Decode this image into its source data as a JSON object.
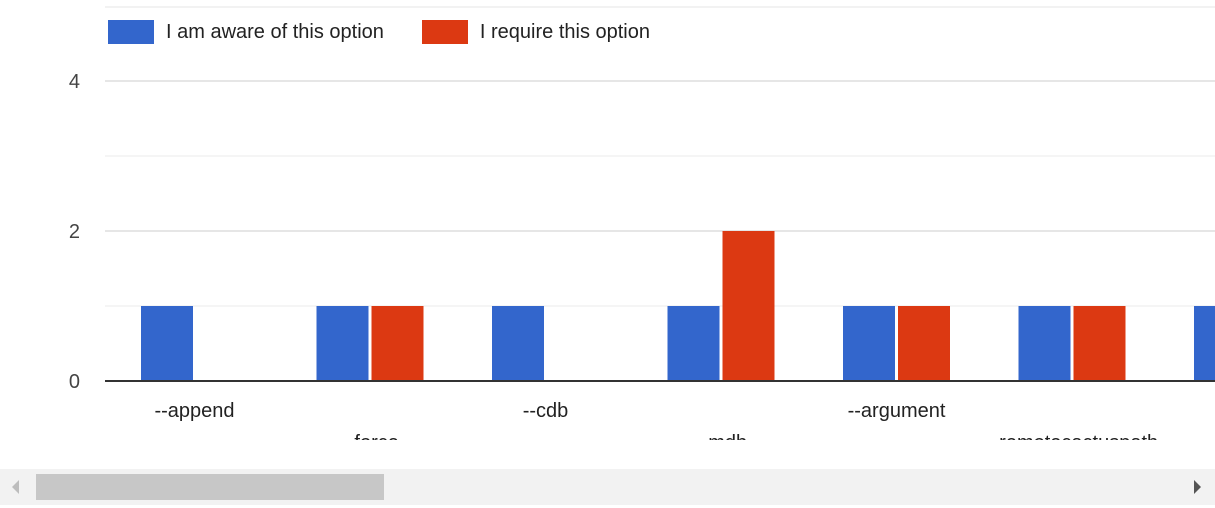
{
  "legend": [
    {
      "label": "I am aware of this option",
      "color": "#3366cc"
    },
    {
      "label": "I require this option",
      "color": "#dc3912"
    }
  ],
  "chart_data": {
    "type": "bar",
    "categories": [
      "--append",
      "--force",
      "--cdb",
      "--mdb",
      "--argument",
      "--remotecactuspath",
      "--"
    ],
    "series": [
      {
        "name": "I am aware of this option",
        "values": [
          1,
          1,
          1,
          1,
          1,
          1,
          1
        ]
      },
      {
        "name": "I require this option",
        "values": [
          0,
          1,
          0,
          2,
          1,
          1,
          null
        ]
      }
    ],
    "yticks": [
      0,
      2,
      4
    ],
    "ylim": [
      0,
      4
    ],
    "grid": true,
    "legend_position": "top-left"
  },
  "scrollbar": {
    "left_icon": "chevron-left-icon",
    "right_icon": "chevron-right-icon"
  }
}
